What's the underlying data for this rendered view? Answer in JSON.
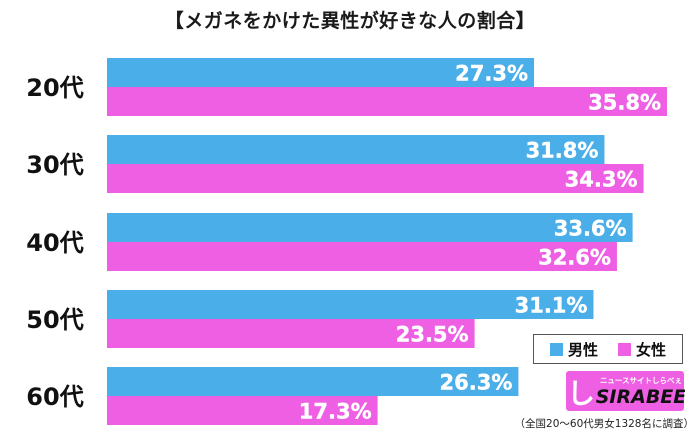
{
  "chart_data": {
    "type": "bar",
    "orientation": "horizontal",
    "title": "【メガネをかけた異性が好きな人の割合】",
    "categories": [
      "20代",
      "30代",
      "40代",
      "50代",
      "60代"
    ],
    "series": [
      {
        "name": "男性",
        "color": "#4aaee8",
        "values": [
          27.3,
          31.8,
          33.6,
          31.1,
          26.3
        ],
        "labels": [
          "27.3%",
          "31.8%",
          "33.6%",
          "31.1%",
          "26.3%"
        ]
      },
      {
        "name": "女性",
        "color": "#ee5fe3",
        "values": [
          35.8,
          34.3,
          32.6,
          23.5,
          17.3
        ],
        "labels": [
          "35.8%",
          "34.3%",
          "32.6%",
          "23.5%",
          "17.3%"
        ]
      }
    ],
    "xlim": [
      0,
      35.8
    ],
    "grid": false,
    "legend_position": "bottom-right"
  },
  "logo": {
    "brand": "SIRABEE",
    "tagline": "ニュースサイトしらべぇ",
    "mark": "し",
    "bg_color": "#ee5fe3"
  },
  "footnote": "（全国20～60代男女1328名に調査）"
}
